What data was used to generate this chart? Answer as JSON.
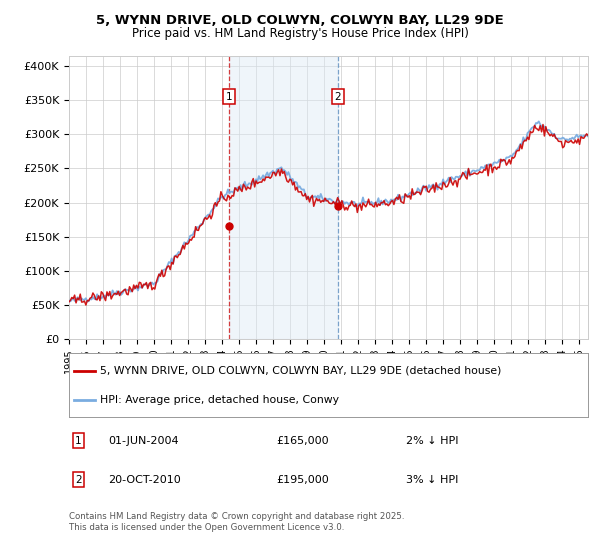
{
  "title_line1": "5, WYNN DRIVE, OLD COLWYN, COLWYN BAY, LL29 9DE",
  "title_line2": "Price paid vs. HM Land Registry's House Price Index (HPI)",
  "ylabel_ticks": [
    "£0",
    "£50K",
    "£100K",
    "£150K",
    "£200K",
    "£250K",
    "£300K",
    "£350K",
    "£400K"
  ],
  "ytick_values": [
    0,
    50000,
    100000,
    150000,
    200000,
    250000,
    300000,
    350000,
    400000
  ],
  "ylim": [
    0,
    415000
  ],
  "xlim_start": 1995.0,
  "xlim_end": 2025.5,
  "hpi_color": "#7aace0",
  "price_color": "#cc0000",
  "shading_color": "#dce9f5",
  "marker1_year": 2004.42,
  "marker2_year": 2010.8,
  "sale1_price": 165000,
  "sale1_label": "1",
  "sale1_pct": "2% ↓ HPI",
  "sale1_date": "01-JUN-2004",
  "sale2_price": 195000,
  "sale2_label": "2",
  "sale2_pct": "3% ↓ HPI",
  "sale2_date": "20-OCT-2010",
  "legend_line1": "5, WYNN DRIVE, OLD COLWYN, COLWYN BAY, LL29 9DE (detached house)",
  "legend_line2": "HPI: Average price, detached house, Conwy",
  "footer": "Contains HM Land Registry data © Crown copyright and database right 2025.\nThis data is licensed under the Open Government Licence v3.0.",
  "background_color": "#ffffff",
  "grid_color": "#cccccc"
}
